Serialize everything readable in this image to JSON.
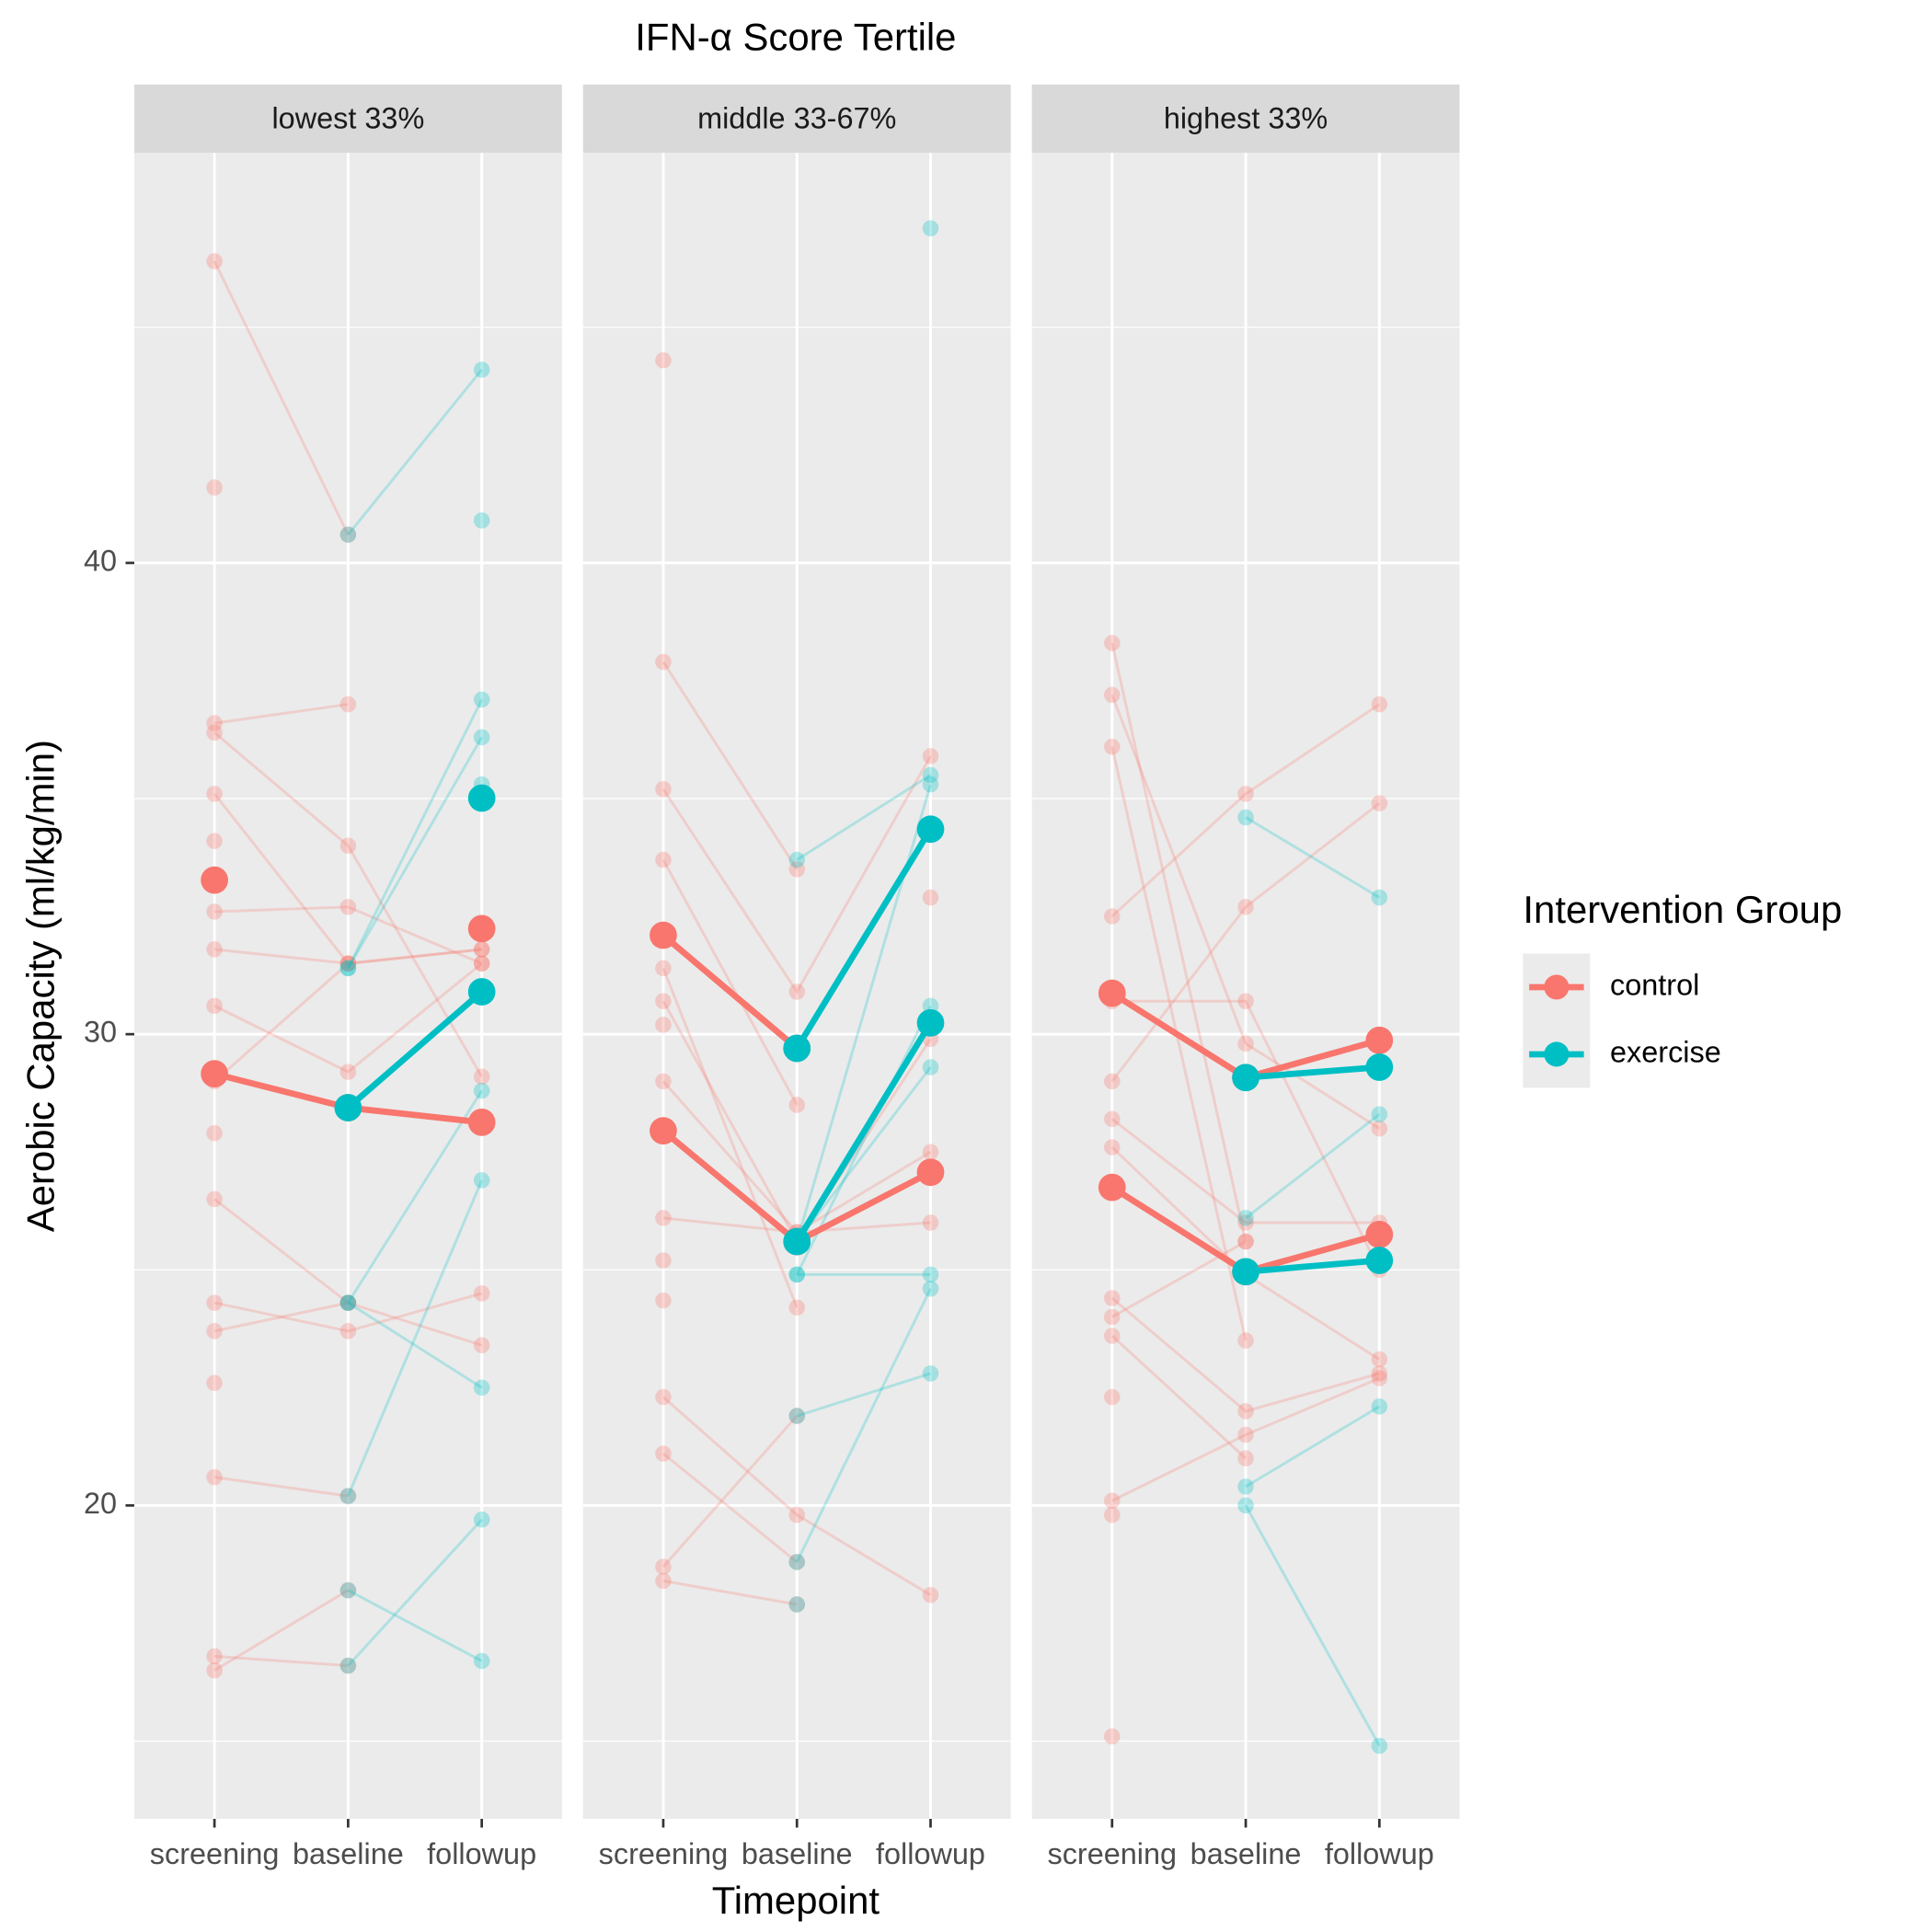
{
  "chart_data": {
    "type": "line",
    "title": "IFN-α Score Tertile",
    "xlabel": "Timepoint",
    "ylabel": "Aerobic Capacity (ml/kg/min)",
    "categories": [
      "screening",
      "baseline",
      "followup"
    ],
    "ylim": [
      13.35,
      48.7
    ],
    "yticks": [
      20,
      30,
      40
    ],
    "minor_yticks": [
      15,
      25,
      35,
      45
    ],
    "legend": {
      "title": "Intervention Group",
      "position": "right",
      "items": [
        {
          "name": "control",
          "color": "#F8766D"
        },
        {
          "name": "exercise",
          "color": "#00BFC4"
        }
      ]
    },
    "panels": [
      {
        "label": "lowest 33%",
        "means": [
          {
            "color": "#F8766D",
            "values": [
              29.16,
              28.44,
              28.13
            ]
          },
          {
            "color": "#F8766D",
            "values": [
              33.27,
              null,
              32.24
            ]
          },
          {
            "color": "#00BFC4",
            "values": [
              null,
              28.44,
              30.9
            ]
          },
          {
            "color": "#00BFC4",
            "values": [
              null,
              null,
              35.01
            ]
          }
        ],
        "individual": [
          {
            "color": "#F8766D",
            "values": [
              46.4,
              40.6,
              null
            ]
          },
          {
            "color": "#F8766D",
            "values": [
              36.6,
              37.0,
              null
            ]
          },
          {
            "color": "#F8766D",
            "values": [
              36.4,
              34.0,
              29.1
            ]
          },
          {
            "color": "#F8766D",
            "values": [
              35.1,
              31.5,
              31.8
            ]
          },
          {
            "color": "#F8766D",
            "values": [
              32.6,
              32.7,
              31.5
            ]
          },
          {
            "color": "#F8766D",
            "values": [
              31.8,
              31.5,
              31.8
            ]
          },
          {
            "color": "#F8766D",
            "values": [
              30.6,
              29.2,
              31.5
            ]
          },
          {
            "color": "#F8766D",
            "values": [
              29.0,
              31.5,
              null
            ]
          },
          {
            "color": "#F8766D",
            "values": [
              26.5,
              24.3,
              null
            ]
          },
          {
            "color": "#F8766D",
            "values": [
              24.3,
              23.7,
              24.5
            ]
          },
          {
            "color": "#F8766D",
            "values": [
              23.7,
              24.3,
              23.4
            ]
          },
          {
            "color": "#F8766D",
            "values": [
              22.6,
              null,
              null
            ]
          },
          {
            "color": "#F8766D",
            "values": [
              20.6,
              20.2,
              null
            ]
          },
          {
            "color": "#F8766D",
            "values": [
              16.8,
              16.6,
              null
            ]
          },
          {
            "color": "#F8766D",
            "values": [
              16.5,
              18.2,
              null
            ]
          },
          {
            "color": "#F8766D",
            "values": [
              41.6,
              null,
              null
            ]
          },
          {
            "color": "#F8766D",
            "values": [
              34.1,
              null,
              null
            ]
          },
          {
            "color": "#F8766D",
            "values": [
              27.9,
              null,
              null
            ]
          },
          {
            "color": "#00BFC4",
            "values": [
              null,
              40.6,
              44.1
            ]
          },
          {
            "color": "#00BFC4",
            "values": [
              null,
              31.4,
              36.3
            ]
          },
          {
            "color": "#00BFC4",
            "values": [
              null,
              31.4,
              37.1
            ]
          },
          {
            "color": "#00BFC4",
            "values": [
              null,
              24.3,
              22.5
            ]
          },
          {
            "color": "#00BFC4",
            "values": [
              null,
              24.3,
              28.8
            ]
          },
          {
            "color": "#00BFC4",
            "values": [
              null,
              20.2,
              26.9
            ]
          },
          {
            "color": "#00BFC4",
            "values": [
              null,
              18.2,
              16.7
            ]
          },
          {
            "color": "#00BFC4",
            "values": [
              null,
              16.6,
              19.7
            ]
          },
          {
            "color": "#00BFC4",
            "values": [
              null,
              null,
              40.9
            ]
          },
          {
            "color": "#00BFC4",
            "values": [
              null,
              null,
              35.3
            ]
          }
        ]
      },
      {
        "label": "middle 33-67%",
        "means": [
          {
            "color": "#F8766D",
            "values": [
              32.1,
              29.7,
              null
            ]
          },
          {
            "color": "#F8766D",
            "values": [
              27.95,
              25.6,
              27.07
            ]
          },
          {
            "color": "#00BFC4",
            "values": [
              null,
              29.7,
              34.35
            ]
          },
          {
            "color": "#00BFC4",
            "values": [
              null,
              25.6,
              30.24
            ]
          }
        ],
        "individual": [
          {
            "color": "#F8766D",
            "values": [
              44.3,
              null,
              null
            ]
          },
          {
            "color": "#F8766D",
            "values": [
              37.9,
              33.5,
              null
            ]
          },
          {
            "color": "#F8766D",
            "values": [
              35.2,
              30.9,
              35.9
            ]
          },
          {
            "color": "#F8766D",
            "values": [
              33.7,
              28.5,
              null
            ]
          },
          {
            "color": "#F8766D",
            "values": [
              31.4,
              24.2,
              null
            ]
          },
          {
            "color": "#F8766D",
            "values": [
              30.7,
              25.6,
              29.9
            ]
          },
          {
            "color": "#F8766D",
            "values": [
              30.2,
              null,
              32.9
            ]
          },
          {
            "color": "#F8766D",
            "values": [
              29.0,
              25.8,
              26.0
            ]
          },
          {
            "color": "#F8766D",
            "values": [
              26.1,
              25.8,
              27.5
            ]
          },
          {
            "color": "#F8766D",
            "values": [
              25.2,
              null,
              null
            ]
          },
          {
            "color": "#F8766D",
            "values": [
              24.35,
              null,
              null
            ]
          },
          {
            "color": "#F8766D",
            "values": [
              22.3,
              19.8,
              18.1
            ]
          },
          {
            "color": "#F8766D",
            "values": [
              21.1,
              18.8,
              null
            ]
          },
          {
            "color": "#F8766D",
            "values": [
              18.7,
              21.9,
              null
            ]
          },
          {
            "color": "#F8766D",
            "values": [
              18.4,
              17.9,
              null
            ]
          },
          {
            "color": "#00BFC4",
            "values": [
              null,
              33.7,
              35.5
            ]
          },
          {
            "color": "#00BFC4",
            "values": [
              null,
              25.6,
              35.3
            ]
          },
          {
            "color": "#00BFC4",
            "values": [
              null,
              24.9,
              30.6
            ]
          },
          {
            "color": "#00BFC4",
            "values": [
              null,
              25.6,
              29.3
            ]
          },
          {
            "color": "#00BFC4",
            "values": [
              null,
              24.9,
              24.9
            ]
          },
          {
            "color": "#00BFC4",
            "values": [
              null,
              21.9,
              22.8
            ]
          },
          {
            "color": "#00BFC4",
            "values": [
              null,
              18.8,
              24.6
            ]
          },
          {
            "color": "#00BFC4",
            "values": [
              null,
              17.9,
              null
            ]
          },
          {
            "color": "#00BFC4",
            "values": [
              null,
              null,
              47.1
            ]
          }
        ]
      },
      {
        "label": "highest 33%",
        "means": [
          {
            "color": "#F8766D",
            "values": [
              30.87,
              29.08,
              29.87
            ]
          },
          {
            "color": "#F8766D",
            "values": [
              26.75,
              24.96,
              25.75
            ]
          },
          {
            "color": "#00BFC4",
            "values": [
              null,
              29.08,
              29.3
            ]
          },
          {
            "color": "#00BFC4",
            "values": [
              null,
              24.96,
              25.2
            ]
          }
        ],
        "individual": [
          {
            "color": "#F8766D",
            "values": [
              38.3,
              25.6,
              null
            ]
          },
          {
            "color": "#F8766D",
            "values": [
              37.2,
              29.8,
              28.0
            ]
          },
          {
            "color": "#F8766D",
            "values": [
              36.1,
              23.5,
              null
            ]
          },
          {
            "color": "#F8766D",
            "values": [
              32.5,
              35.1,
              37.0
            ]
          },
          {
            "color": "#F8766D",
            "values": [
              30.7,
              30.7,
              25.0
            ]
          },
          {
            "color": "#F8766D",
            "values": [
              29.0,
              32.7,
              34.9
            ]
          },
          {
            "color": "#F8766D",
            "values": [
              28.2,
              26.0,
              26.0
            ]
          },
          {
            "color": "#F8766D",
            "values": [
              27.6,
              24.9,
              23.1
            ]
          },
          {
            "color": "#F8766D",
            "values": [
              24.4,
              22.0,
              22.8
            ]
          },
          {
            "color": "#F8766D",
            "values": [
              24.0,
              25.6,
              null
            ]
          },
          {
            "color": "#F8766D",
            "values": [
              23.6,
              21.0,
              null
            ]
          },
          {
            "color": "#F8766D",
            "values": [
              22.3,
              null,
              null
            ]
          },
          {
            "color": "#F8766D",
            "values": [
              20.1,
              21.5,
              22.7
            ]
          },
          {
            "color": "#F8766D",
            "values": [
              19.8,
              null,
              null
            ]
          },
          {
            "color": "#F8766D",
            "values": [
              15.1,
              null,
              null
            ]
          },
          {
            "color": "#00BFC4",
            "values": [
              null,
              34.6,
              32.9
            ]
          },
          {
            "color": "#00BFC4",
            "values": [
              null,
              26.1,
              28.3
            ]
          },
          {
            "color": "#00BFC4",
            "values": [
              null,
              20.4,
              22.1
            ]
          },
          {
            "color": "#00BFC4",
            "values": [
              null,
              20.0,
              14.9
            ]
          }
        ]
      }
    ]
  }
}
